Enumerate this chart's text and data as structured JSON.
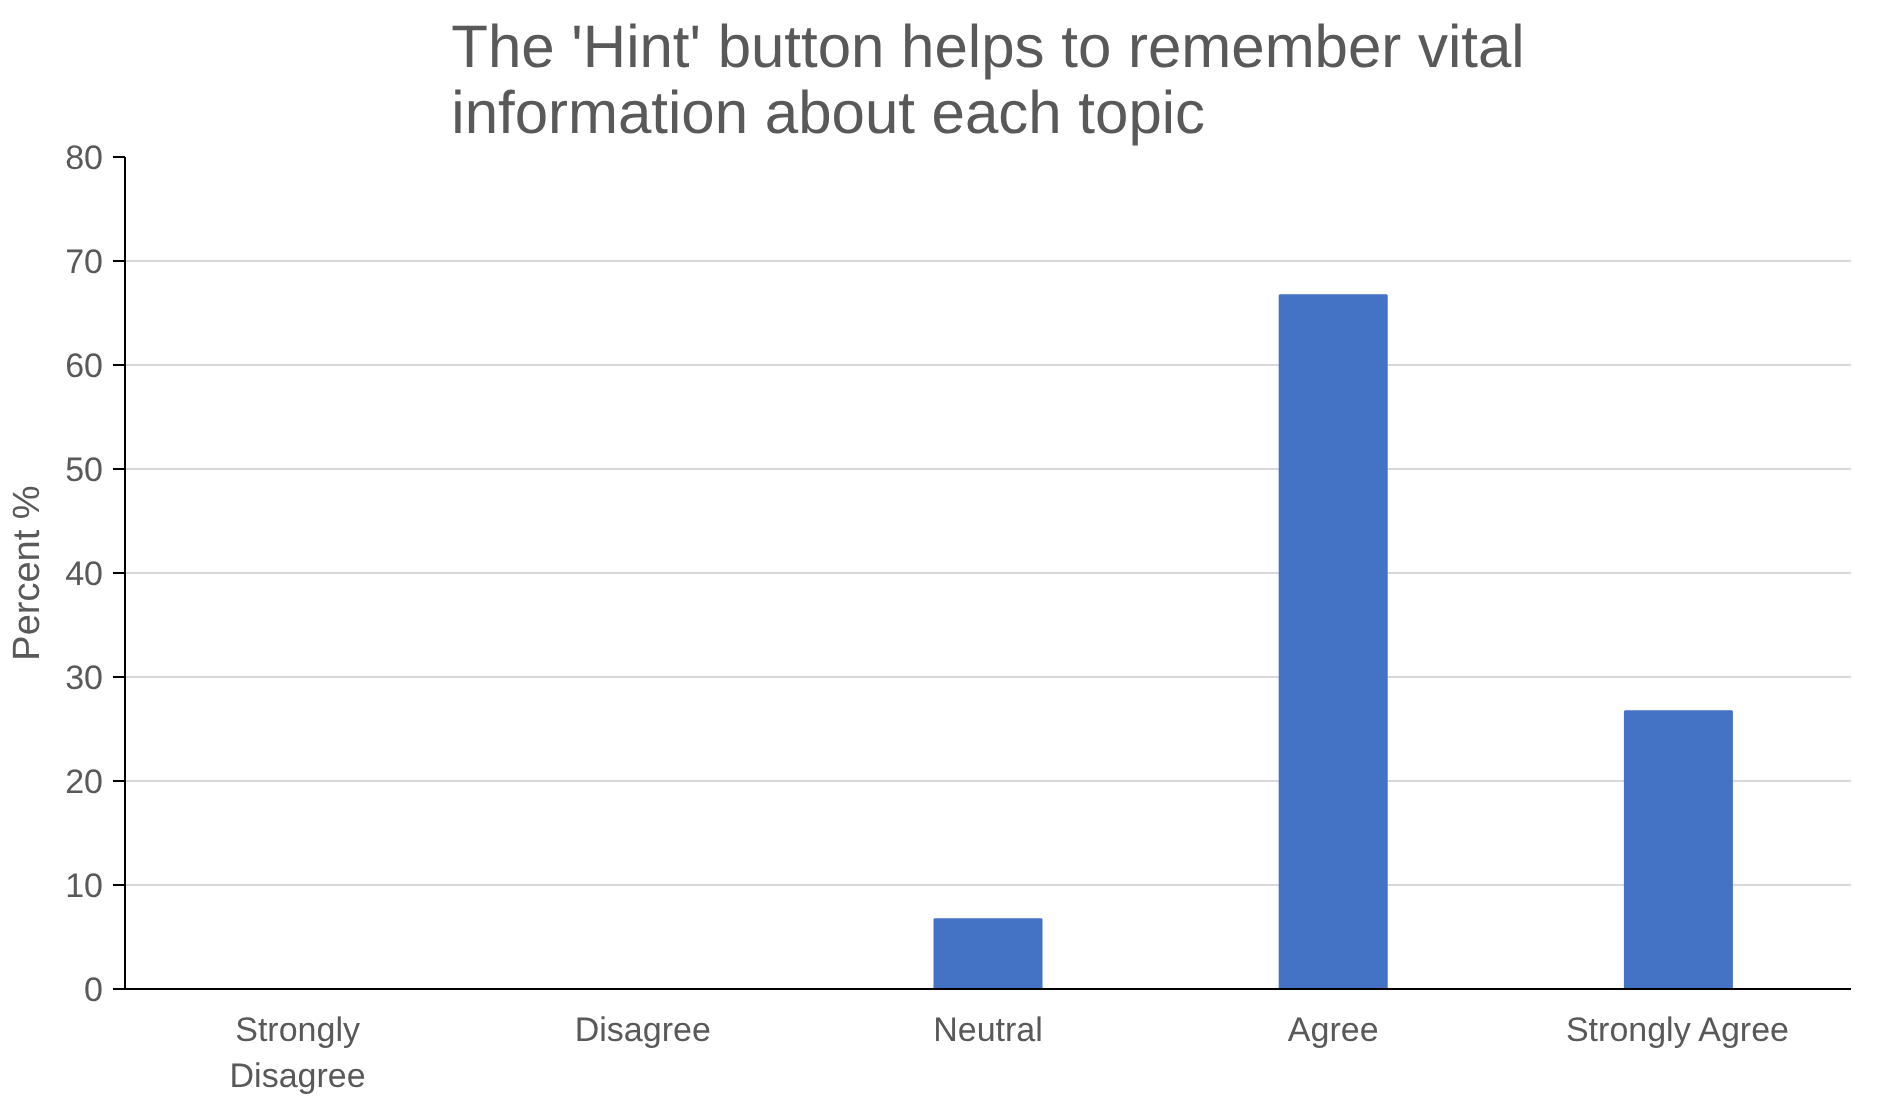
{
  "chart_data": {
    "type": "bar",
    "title": "The 'Hint' button helps to remember vital information about each topic",
    "ylabel": "Percent %",
    "categories": [
      "Strongly Disagree",
      "Disagree",
      "Neutral",
      "Agree",
      "Strongly Agree"
    ],
    "values": [
      0,
      0,
      6.7,
      66.7,
      26.7
    ],
    "color": "#4472c4",
    "ylim": [
      0,
      80
    ],
    "yticks": [
      0,
      10,
      20,
      30,
      40,
      50,
      60,
      70,
      80
    ],
    "grid": "y"
  }
}
